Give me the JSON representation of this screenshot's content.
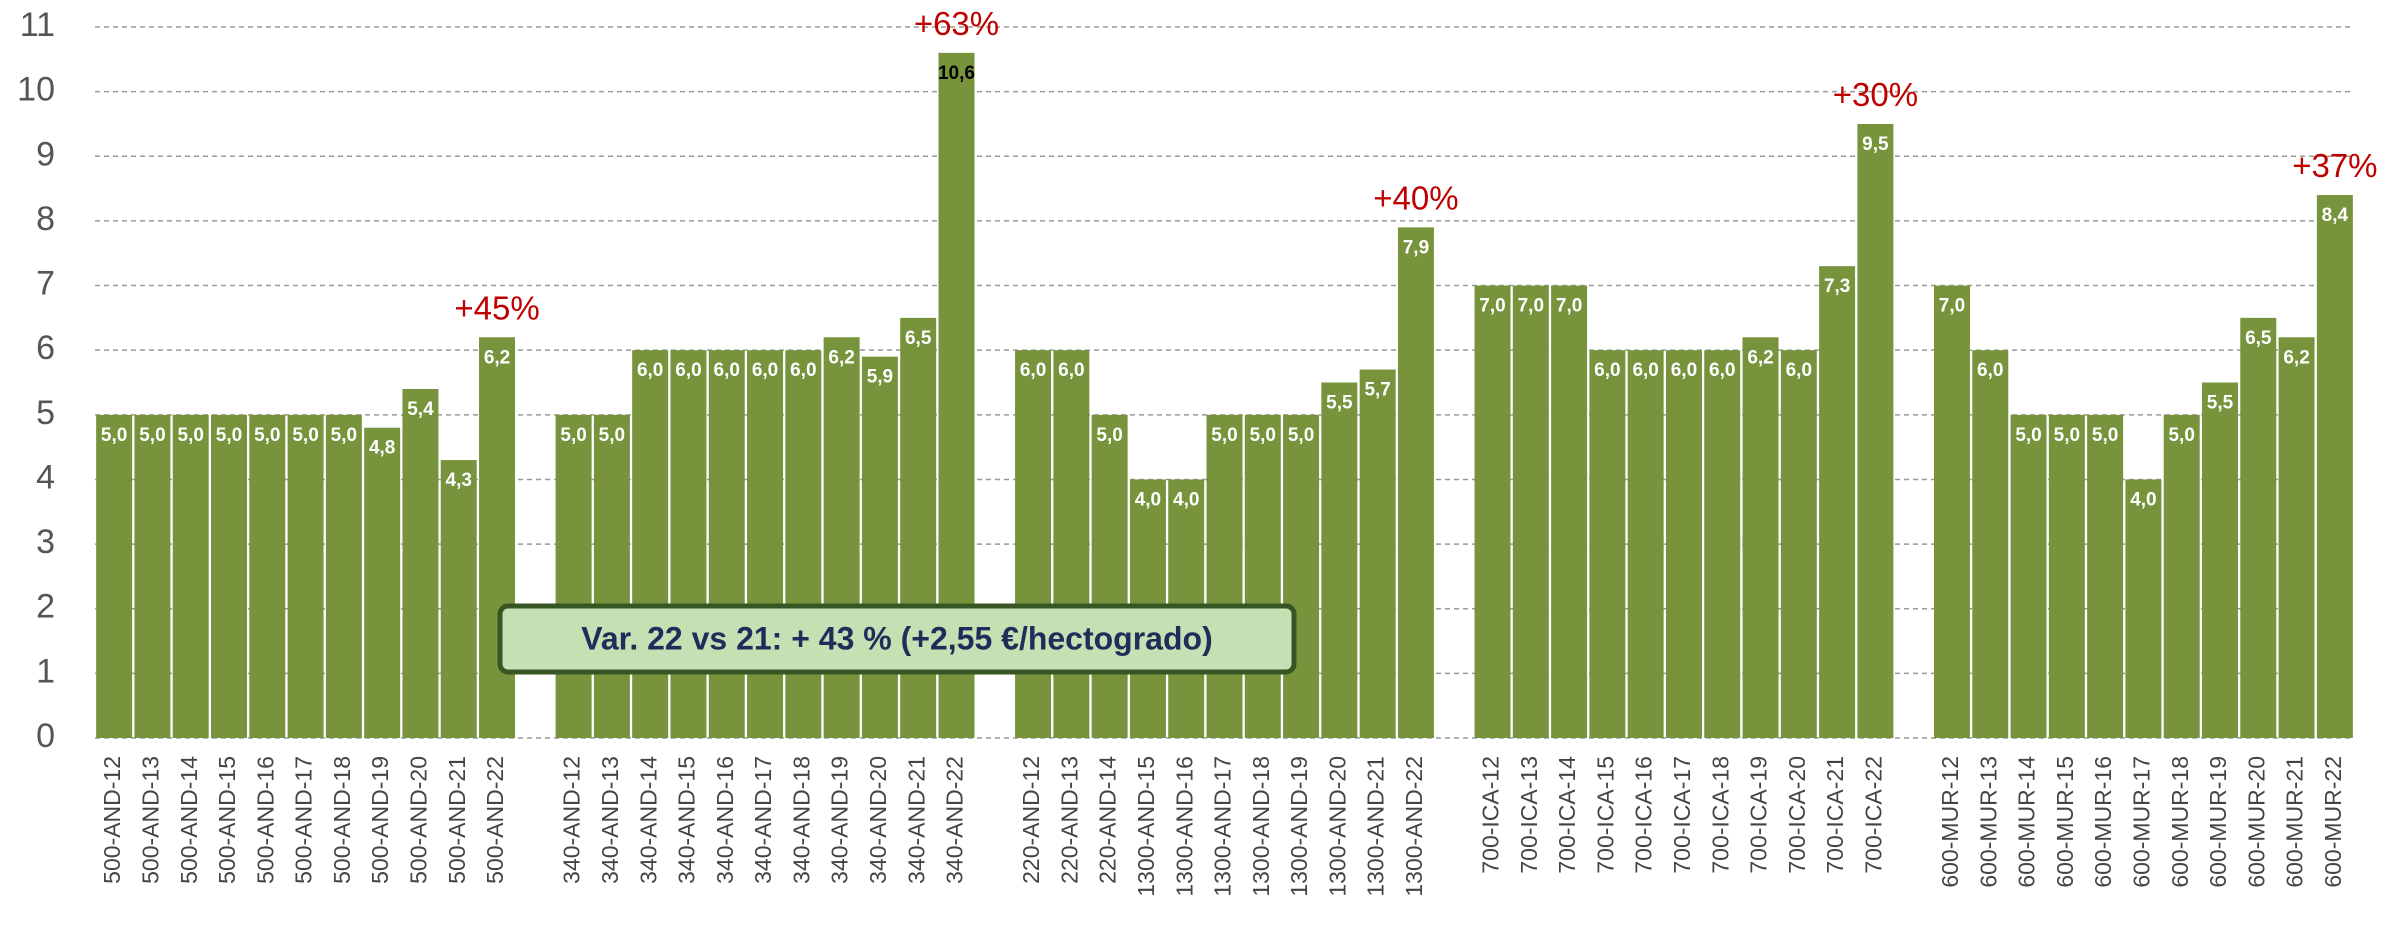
{
  "chart_data": {
    "type": "bar",
    "categories": [
      "500-AND-12",
      "500-AND-13",
      "500-AND-14",
      "500-AND-15",
      "500-AND-16",
      "500-AND-17",
      "500-AND-18",
      "500-AND-19",
      "500-AND-20",
      "500-AND-21",
      "500-AND-22",
      null,
      "340-AND-12",
      "340-AND-13",
      "340-AND-14",
      "340-AND-15",
      "340-AND-16",
      "340-AND-17",
      "340-AND-18",
      "340-AND-19",
      "340-AND-20",
      "340-AND-21",
      "340-AND-22",
      null,
      "220-AND-12",
      "220-AND-13",
      "220-AND-14",
      "1300-AND-15",
      "1300-AND-16",
      "1300-AND-17",
      "1300-AND-18",
      "1300-AND-19",
      "1300-AND-20",
      "1300-AND-21",
      "1300-AND-22",
      null,
      "700-ICA-12",
      "700-ICA-13",
      "700-ICA-14",
      "700-ICA-15",
      "700-ICA-16",
      "700-ICA-17",
      "700-ICA-18",
      "700-ICA-19",
      "700-ICA-20",
      "700-ICA-21",
      "700-ICA-22",
      null,
      "600-MUR-12",
      "600-MUR-13",
      "600-MUR-14",
      "600-MUR-15",
      "600-MUR-16",
      "600-MUR-17",
      "600-MUR-18",
      "600-MUR-19",
      "600-MUR-20",
      "600-MUR-21",
      "600-MUR-22"
    ],
    "values": [
      5.0,
      5.0,
      5.0,
      5.0,
      5.0,
      5.0,
      5.0,
      4.8,
      5.4,
      4.3,
      6.2,
      null,
      5.0,
      5.0,
      6.0,
      6.0,
      6.0,
      6.0,
      6.0,
      6.2,
      5.9,
      6.5,
      10.6,
      null,
      6.0,
      6.0,
      5.0,
      4.0,
      4.0,
      5.0,
      5.0,
      5.0,
      5.5,
      5.7,
      7.9,
      null,
      7.0,
      7.0,
      7.0,
      6.0,
      6.0,
      6.0,
      6.0,
      6.2,
      6.0,
      7.3,
      9.5,
      null,
      7.0,
      6.0,
      5.0,
      5.0,
      5.0,
      4.0,
      5.0,
      5.5,
      6.5,
      6.2,
      8.4
    ],
    "value_labels": [
      "5,0",
      "5,0",
      "5,0",
      "5,0",
      "5,0",
      "5,0",
      "5,0",
      "4,8",
      "5,4",
      "4,3",
      "6,2",
      null,
      "5,0",
      "5,0",
      "6,0",
      "6,0",
      "6,0",
      "6,0",
      "6,0",
      "6,2",
      "5,9",
      "6,5",
      "10,6",
      null,
      "6,0",
      "6,0",
      "5,0",
      "4,0",
      "4,0",
      "5,0",
      "5,0",
      "5,0",
      "5,5",
      "5,7",
      "7,9",
      null,
      "7,0",
      "7,0",
      "7,0",
      "6,0",
      "6,0",
      "6,0",
      "6,0",
      "6,2",
      "6,0",
      "7,3",
      "9,5",
      null,
      "7,0",
      "6,0",
      "5,0",
      "5,0",
      "5,0",
      "4,0",
      "5,0",
      "5,5",
      "6,5",
      "6,2",
      "8,4"
    ],
    "color": "#77933c",
    "ylim": [
      0,
      11
    ],
    "yticks": [
      0,
      1,
      2,
      3,
      4,
      5,
      6,
      7,
      8,
      9,
      10,
      11
    ],
    "grid": true,
    "annotations": [
      "+45%",
      "+63%",
      "+40%",
      "+30%",
      "+37%"
    ],
    "note": "Var. 22 vs 21: + 43 % (+2,55 €/hectogrado)"
  }
}
